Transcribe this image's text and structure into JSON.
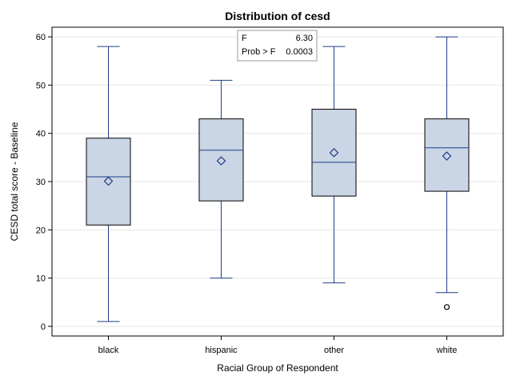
{
  "chart_data": {
    "type": "boxplot",
    "title": "Distribution of cesd",
    "xlabel": "Racial Group of Respondent",
    "ylabel": "CESD total score - Baseline",
    "ylim": [
      -2,
      62
    ],
    "yticks": [
      0,
      10,
      20,
      30,
      40,
      50,
      60
    ],
    "grid": "horizontal",
    "categories": [
      "black",
      "hispanic",
      "other",
      "white"
    ],
    "boxes": [
      {
        "category": "black",
        "min": 1,
        "q1": 21,
        "median": 31,
        "q3": 39,
        "max": 58,
        "mean": 30.1,
        "outliers": []
      },
      {
        "category": "hispanic",
        "min": 10,
        "q1": 26,
        "median": 36.5,
        "q3": 43,
        "max": 51,
        "mean": 34.3,
        "outliers": []
      },
      {
        "category": "other",
        "min": 9,
        "q1": 27,
        "median": 34,
        "q3": 45,
        "max": 58,
        "mean": 36,
        "outliers": []
      },
      {
        "category": "white",
        "min": 7,
        "q1": 28,
        "median": 37,
        "q3": 43,
        "max": 60,
        "mean": 35.3,
        "outliers": [
          4
        ]
      }
    ],
    "stats_box": {
      "placement": "top-center",
      "rows": [
        {
          "label": "F",
          "value": "6.30"
        },
        {
          "label": "Prob > F",
          "value": "0.0003"
        }
      ]
    },
    "colors": {
      "box_fill": "#cad5e5",
      "box_edge": "#000000",
      "line": "#1f3f87",
      "grid": "#e6e6e6",
      "frame": "#000000"
    }
  }
}
